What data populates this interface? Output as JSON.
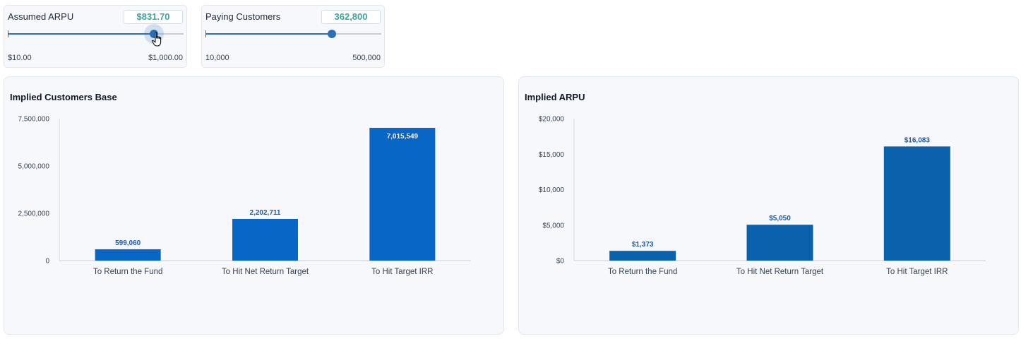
{
  "sliders": [
    {
      "label": "Assumed ARPU",
      "value": "$831.70",
      "min_label": "$10.00",
      "max_label": "$1,000.00",
      "min": 10,
      "max": 1000,
      "current": 831.7,
      "active": true
    },
    {
      "label": "Paying Customers",
      "value": "362,800",
      "min_label": "10,000",
      "max_label": "500,000",
      "min": 10000,
      "max": 500000,
      "current": 362800,
      "active": false
    }
  ],
  "cursor": {
    "icon": "hand-pointer-icon"
  },
  "colors": {
    "bar_left": "#0866c6",
    "bar_right": "#0a62ad",
    "accent_value": "#3fa39b",
    "slider": "#2c6fb7"
  },
  "chart_data": [
    {
      "type": "bar",
      "title": "Implied Customers Base",
      "categories": [
        "To Return the Fund",
        "To Hit Net Return Target",
        "To Hit Target IRR"
      ],
      "values": [
        599060,
        2202711,
        7015549
      ],
      "value_labels": [
        "599,060",
        "2,202,711",
        "7,015,549"
      ],
      "ylim": [
        0,
        7500000
      ],
      "yticks": [
        0,
        2500000,
        5000000,
        7500000
      ],
      "ytick_labels": [
        "0",
        "2,500,000",
        "5,000,000",
        "7,500,000"
      ],
      "xlabel": "",
      "ylabel": "",
      "grid": false,
      "legend": "none"
    },
    {
      "type": "bar",
      "title": "Implied ARPU",
      "categories": [
        "To Return the Fund",
        "To Hit Net Return Target",
        "To Hit Target IRR"
      ],
      "values": [
        1373,
        5050,
        16083
      ],
      "value_labels": [
        "$1,373",
        "$5,050",
        "$16,083"
      ],
      "ylim": [
        0,
        20000
      ],
      "yticks": [
        0,
        5000,
        10000,
        15000,
        20000
      ],
      "ytick_labels": [
        "$0",
        "$5,000",
        "$10,000",
        "$15,000",
        "$20,000"
      ],
      "xlabel": "",
      "ylabel": "",
      "grid": false,
      "legend": "none"
    }
  ]
}
